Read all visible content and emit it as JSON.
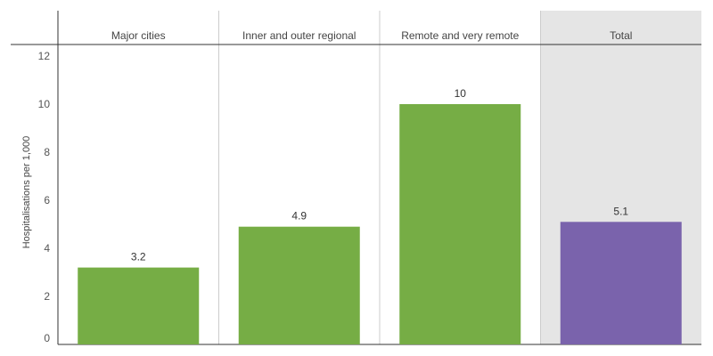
{
  "chart_data": {
    "type": "bar",
    "categories": [
      "Major cities",
      "Inner and outer regional",
      "Remote and very remote",
      "Total"
    ],
    "values": [
      3.2,
      4.9,
      10,
      5.1
    ],
    "value_labels": [
      "3.2",
      "4.9",
      "10",
      "5.1"
    ],
    "ylabel": "Hospitalisations per 1,000",
    "yticks": [
      0,
      2,
      4,
      6,
      8,
      10,
      12
    ],
    "ylim": [
      0,
      12
    ],
    "grid": false,
    "colors": {
      "bar_default": "#76ad45",
      "bar_total": "#7a63ac",
      "total_panel_bg": "#e5e5e5",
      "divider": "#cccccc",
      "axis": "#333333"
    }
  }
}
